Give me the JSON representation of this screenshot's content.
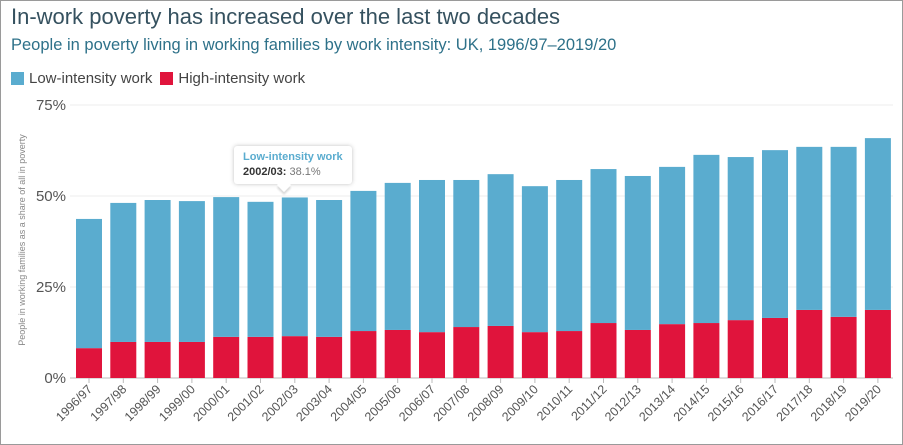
{
  "chart_data": {
    "type": "bar",
    "stacked": true,
    "title": "In-work poverty has increased over the last two decades",
    "subtitle": "People in poverty living in working families by work intensity: UK, 1996/97–2019/20",
    "ylabel": "People in working families as a share of all in poverty",
    "xlabel": "",
    "ylim": [
      0,
      75
    ],
    "yticks": [
      "0%",
      "25%",
      "50%",
      "75%"
    ],
    "grid": true,
    "legend_placement": "top-left",
    "categories": [
      "1996/97",
      "1997/98",
      "1998/99",
      "1999/00",
      "2000/01",
      "2001/02",
      "2002/03",
      "2003/04",
      "2004/05",
      "2005/06",
      "2006/07",
      "2007/08",
      "2008/09",
      "2009/10",
      "2010/11",
      "2011/12",
      "2012/13",
      "2013/14",
      "2014/15",
      "2015/16",
      "2016/17",
      "2017/18",
      "2018/19",
      "2019/20"
    ],
    "series": [
      {
        "name": "High-intensity work",
        "color": "#e0143c",
        "values": [
          8.2,
          9.9,
          9.9,
          9.9,
          11.3,
          11.3,
          11.5,
          11.3,
          12.9,
          13.2,
          12.6,
          14.0,
          14.3,
          12.6,
          12.9,
          15.1,
          13.2,
          14.8,
          15.1,
          15.9,
          16.5,
          18.7,
          16.8,
          18.7
        ]
      },
      {
        "name": "Low-intensity work",
        "color": "#5aaccf",
        "values": [
          35.5,
          38.2,
          39.0,
          38.7,
          38.4,
          37.1,
          38.1,
          37.6,
          38.5,
          40.4,
          41.8,
          40.4,
          41.7,
          40.1,
          41.5,
          42.3,
          42.3,
          43.2,
          46.2,
          44.8,
          46.1,
          44.8,
          46.7,
          47.2
        ]
      }
    ],
    "tooltip": {
      "series": "Low-intensity work",
      "category": "2002/03:",
      "value": "38.1%"
    }
  }
}
